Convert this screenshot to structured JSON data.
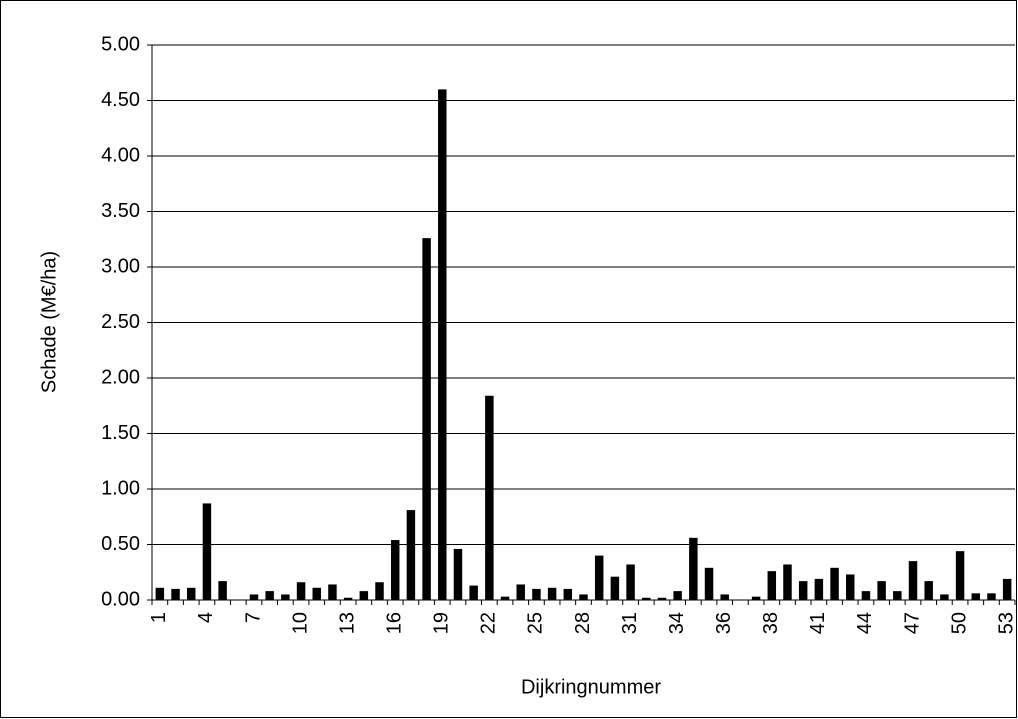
{
  "chart_data": {
    "type": "bar",
    "x_label": "Dijkringnummer",
    "y_label": "Schade (M€/ha)",
    "categories": [
      "1",
      null,
      null,
      "4",
      null,
      null,
      "7",
      null,
      null,
      "10",
      null,
      null,
      "13",
      null,
      null,
      "16",
      null,
      null,
      "19",
      null,
      null,
      "22",
      null,
      null,
      "25",
      null,
      null,
      "28",
      null,
      null,
      "31",
      null,
      null,
      "34",
      null,
      null,
      "36",
      null,
      null,
      "38",
      null,
      null,
      "41",
      null,
      null,
      "44",
      null,
      null,
      "47",
      null,
      null,
      "50",
      null,
      null,
      "53"
    ],
    "values": [
      0.11,
      0.1,
      0.11,
      0.87,
      0.17,
      0,
      0.05,
      0.08,
      0.05,
      0.16,
      0.11,
      0.14,
      0.02,
      0.08,
      0.16,
      0.54,
      0.81,
      3.26,
      4.6,
      0.46,
      0.13,
      1.84,
      0.03,
      0.14,
      0.1,
      0.11,
      0.1,
      0.05,
      0.4,
      0.21,
      0.32,
      0.02,
      0.02,
      0.08,
      0.56,
      0.29,
      0.05,
      0,
      0.03,
      0.26,
      0.32,
      0.17,
      0.19,
      0.29,
      0.23,
      0.08,
      0.17,
      0.08,
      0.35,
      0.17,
      0.05,
      0.44,
      0.06,
      0.06,
      0.19
    ],
    "color": "#000000",
    "ylim": [
      0,
      5
    ],
    "yticks": [
      {
        "value": 0,
        "label": "0.00"
      },
      {
        "value": 0.5,
        "label": "0.50"
      },
      {
        "value": 1,
        "label": "1.00"
      },
      {
        "value": 1.5,
        "label": "1.50"
      },
      {
        "value": 2,
        "label": "2.00"
      },
      {
        "value": 2.5,
        "label": "2.50"
      },
      {
        "value": 3,
        "label": "3.00"
      },
      {
        "value": 3.5,
        "label": "3.50"
      },
      {
        "value": 4,
        "label": "4.00"
      },
      {
        "value": 4.5,
        "label": "4.50"
      },
      {
        "value": 5,
        "label": "5.00"
      }
    ],
    "grid": true
  }
}
